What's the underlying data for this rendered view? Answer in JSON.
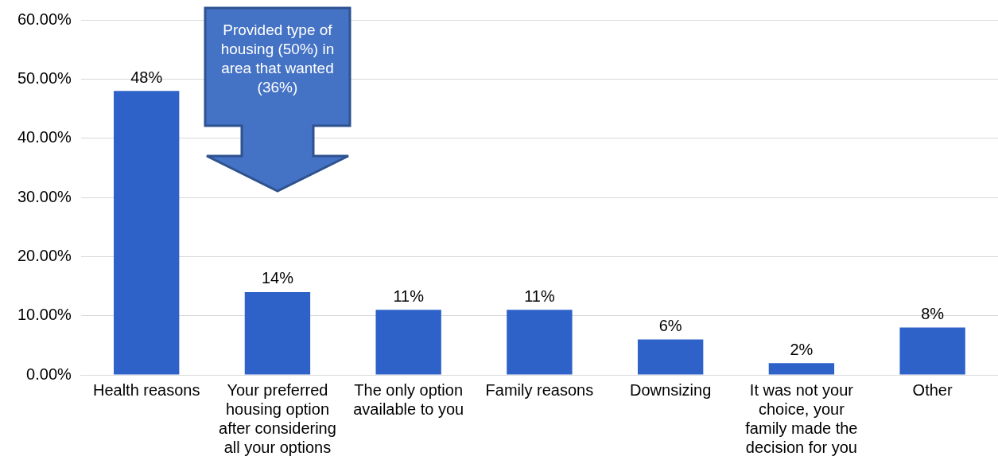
{
  "chart_data": {
    "type": "bar",
    "categories": [
      "Health reasons",
      "Your preferred housing option after considering all your options",
      "The only option available to you",
      "Family reasons",
      "Downsizing",
      "It was not your choice, your family made the decision for you",
      "Other"
    ],
    "values": [
      48,
      14,
      11,
      11,
      6,
      2,
      8
    ],
    "value_labels": [
      "48%",
      "14%",
      "11%",
      "11%",
      "6%",
      "2%",
      "8%"
    ],
    "color": "#2e62c8",
    "ylim": [
      0,
      60
    ],
    "yticks": [
      {
        "value": 0,
        "label": "0.00%"
      },
      {
        "value": 10,
        "label": "10.00%"
      },
      {
        "value": 20,
        "label": "20.00%"
      },
      {
        "value": 30,
        "label": "30.00%"
      },
      {
        "value": 40,
        "label": "40.00%"
      },
      {
        "value": 50,
        "label": "50.00%"
      },
      {
        "value": 60,
        "label": "60.00%"
      }
    ],
    "grid": "y",
    "annotations": [
      "Provided type of housing (50%) in area that wanted (36%)"
    ]
  }
}
